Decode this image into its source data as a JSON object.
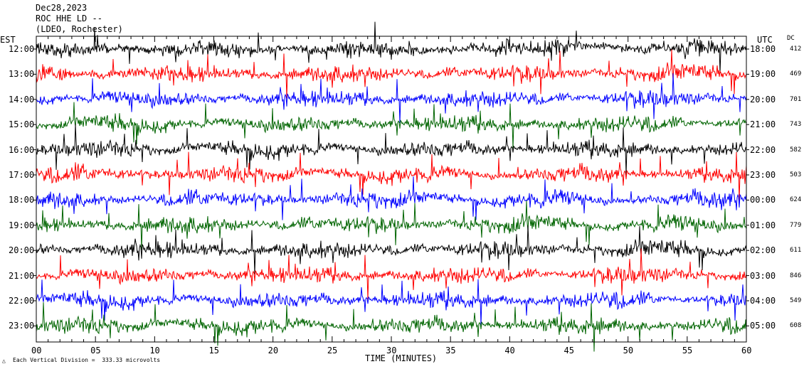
{
  "header": {
    "date": "Dec28,2023",
    "station": "ROC HHE LD --",
    "network": "(LDEO, Rochester)"
  },
  "axis_labels": {
    "left_tz": "EST",
    "right_tz": "UTC",
    "dc": "DC",
    "x_title": "TIME (MINUTES)",
    "footnote": "Each Vertical Division =  333.33 microvolts"
  },
  "chart_data": {
    "type": "line",
    "title": "",
    "xlabel": "TIME (MINUTES)",
    "xlim": [
      0,
      60
    ],
    "x_ticks": [
      "00",
      "05",
      "10",
      "15",
      "20",
      "25",
      "30",
      "35",
      "40",
      "45",
      "50",
      "55",
      "60"
    ],
    "trace_colors": [
      "#000000",
      "#ff0000",
      "#0000ff",
      "#006400"
    ],
    "rows": [
      {
        "est": "12:00",
        "utc": "18:00",
        "dc": "412",
        "color": "#000000"
      },
      {
        "est": "13:00",
        "utc": "19:00",
        "dc": "469",
        "color": "#ff0000"
      },
      {
        "est": "14:00",
        "utc": "20:00",
        "dc": "701",
        "color": "#0000ff"
      },
      {
        "est": "15:00",
        "utc": "21:00",
        "dc": "743",
        "color": "#006400"
      },
      {
        "est": "16:00",
        "utc": "22:00",
        "dc": "582",
        "color": "#000000"
      },
      {
        "est": "17:00",
        "utc": "23:00",
        "dc": "503",
        "color": "#ff0000"
      },
      {
        "est": "18:00",
        "utc": "00:00",
        "dc": "624",
        "color": "#0000ff"
      },
      {
        "est": "19:00",
        "utc": "01:00",
        "dc": "779",
        "color": "#006400"
      },
      {
        "est": "20:00",
        "utc": "02:00",
        "dc": "611",
        "color": "#000000"
      },
      {
        "est": "21:00",
        "utc": "03:00",
        "dc": "846",
        "color": "#ff0000"
      },
      {
        "est": "22:00",
        "utc": "04:00",
        "dc": "549",
        "color": "#0000ff"
      },
      {
        "est": "23:00",
        "utc": "05:00",
        "dc": "608",
        "color": "#006400"
      }
    ]
  }
}
